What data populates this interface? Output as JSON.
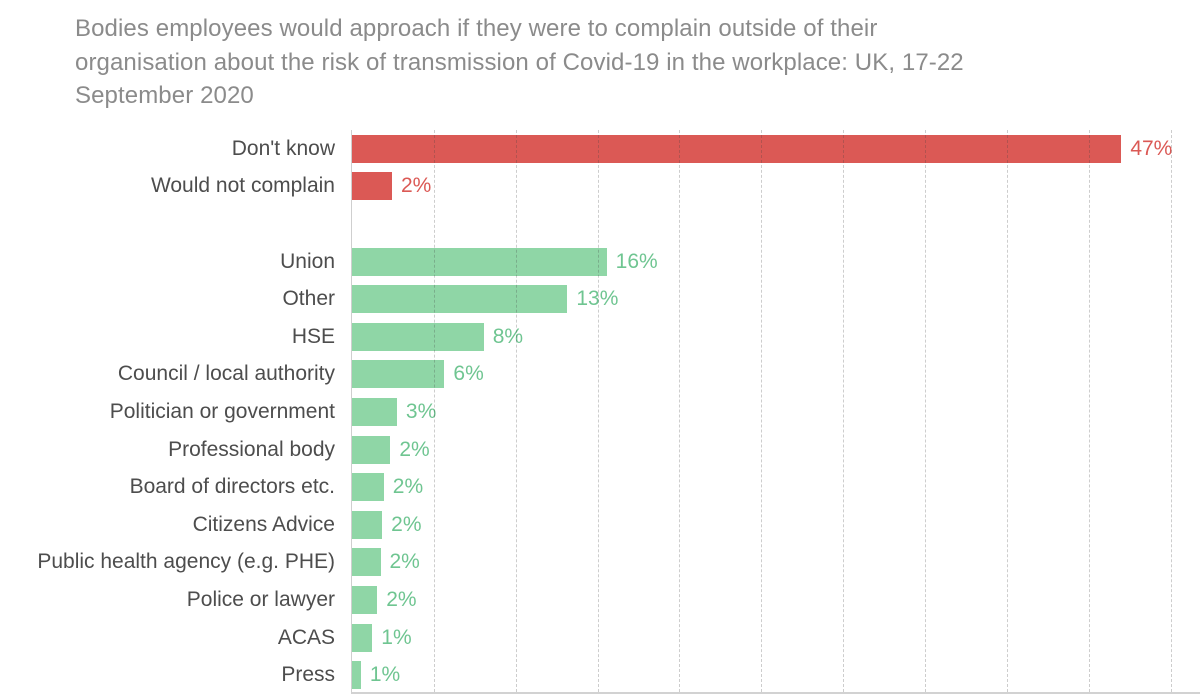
{
  "chart_data": {
    "type": "bar",
    "orientation": "horizontal",
    "title": "Bodies employees would approach if they were to complain outside of their organisation about the risk of transmission of Covid-19 in the workplace: UK, 17-22 September 2020",
    "title_lines": [
      "Bodies employees would approach if they were to complain outside of their",
      "organisation about the risk of transmission of Covid-19 in the workplace: UK, 17-22",
      "September 2020"
    ],
    "xlabel": "",
    "ylabel": "",
    "unit": "%",
    "xlim": [
      0,
      51.8
    ],
    "gridlines": {
      "interval_pct": 5,
      "max_pct": 50,
      "style": "dashed",
      "drawn_over_bars": true
    },
    "axis_tick_labels_shown": false,
    "value_labels_shown": true,
    "legend": "none",
    "categories": [
      "Don't know",
      "Would not complain",
      "Union",
      "Other",
      "HSE",
      "Council / local authority",
      "Politician or government",
      "Professional body",
      "Board of directors etc.",
      "Citizens Advice",
      "Public health agency (e.g. PHE)",
      "Police or lawyer",
      "ACAS",
      "Press"
    ],
    "values": [
      47,
      2,
      16,
      13,
      8,
      6,
      3,
      2,
      2,
      2,
      2,
      2,
      1,
      1
    ],
    "rows": [
      {
        "label": "Don't know",
        "value": 47,
        "value_label": "47%",
        "group": "red",
        "bar_length_pct": 47.0
      },
      {
        "label": "Would not complain",
        "value": 2,
        "value_label": "2%",
        "group": "red",
        "bar_length_pct": 2.5
      },
      {
        "spacer": true
      },
      {
        "label": "Union",
        "value": 16,
        "value_label": "16%",
        "group": "green",
        "bar_length_pct": 15.6
      },
      {
        "label": "Other",
        "value": 13,
        "value_label": "13%",
        "group": "green",
        "bar_length_pct": 13.2
      },
      {
        "label": "HSE",
        "value": 8,
        "value_label": "8%",
        "group": "green",
        "bar_length_pct": 8.1
      },
      {
        "label": "Council / local authority",
        "value": 6,
        "value_label": "6%",
        "group": "green",
        "bar_length_pct": 5.7
      },
      {
        "label": "Politician or government",
        "value": 3,
        "value_label": "3%",
        "group": "green",
        "bar_length_pct": 2.8
      },
      {
        "label": "Professional body",
        "value": 2,
        "value_label": "2%",
        "group": "green",
        "bar_length_pct": 2.4
      },
      {
        "label": "Board of directors etc.",
        "value": 2,
        "value_label": "2%",
        "group": "green",
        "bar_length_pct": 2.0
      },
      {
        "label": "Citizens Advice",
        "value": 2,
        "value_label": "2%",
        "group": "green",
        "bar_length_pct": 1.9
      },
      {
        "label": "Public health agency (e.g. PHE)",
        "value": 2,
        "value_label": "2%",
        "group": "green",
        "bar_length_pct": 1.8
      },
      {
        "label": "Police or lawyer",
        "value": 2,
        "value_label": "2%",
        "group": "green",
        "bar_length_pct": 1.6
      },
      {
        "label": "ACAS",
        "value": 1,
        "value_label": "1%",
        "group": "green",
        "bar_length_pct": 1.3
      },
      {
        "label": "Press",
        "value": 1,
        "value_label": "1%",
        "group": "green",
        "bar_length_pct": 0.6
      }
    ],
    "colors": {
      "bar_red": "#db5955",
      "bar_green": "#8fd6a6",
      "label_red": "#db5955",
      "label_green": "#6fc591",
      "title_text": "#8b8b8b",
      "category_text": "#4d4d4d",
      "gridline": "rgba(60,60,60,0.26)",
      "axis_line": "#cfcfcf",
      "background": "#ffffff"
    }
  }
}
